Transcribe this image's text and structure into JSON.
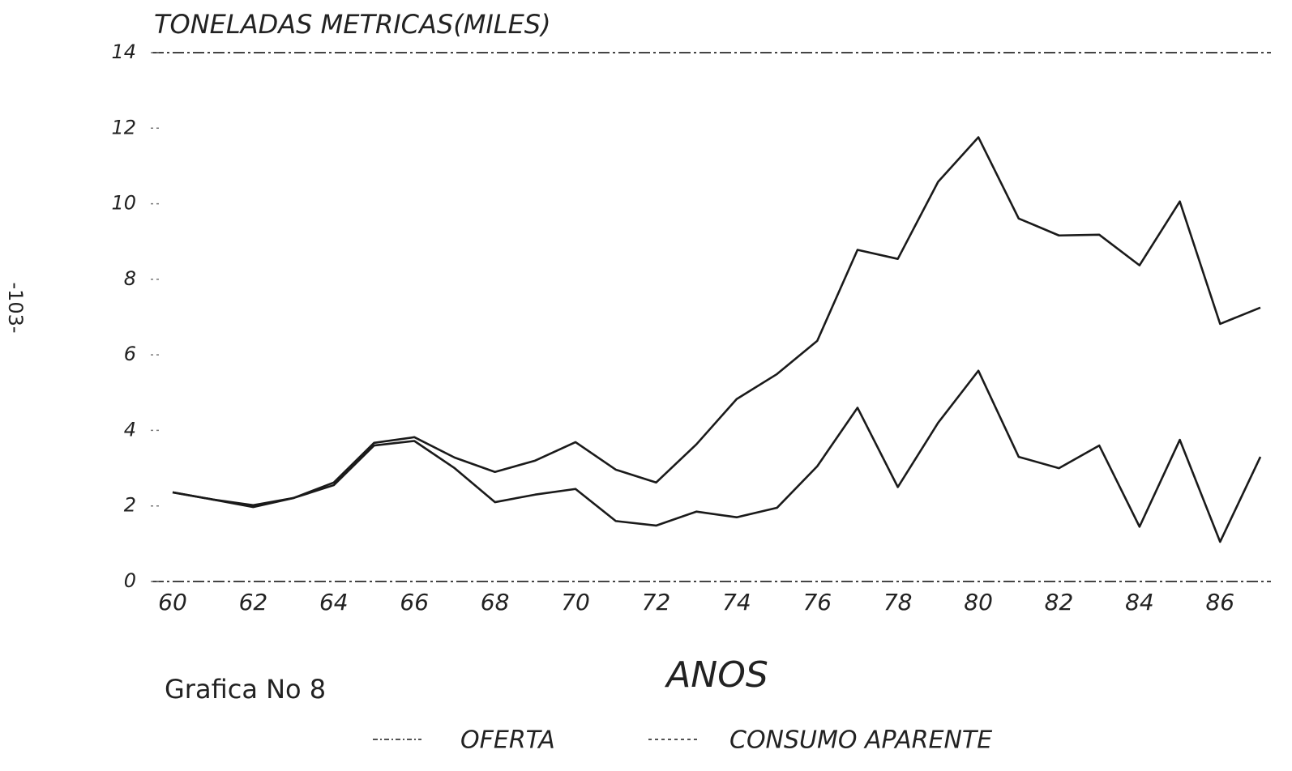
{
  "chart_data": {
    "type": "line",
    "title": "TONELADAS METRICAS(MILES)",
    "x_label": "ANOS",
    "caption": "Grafica No 8",
    "page_number": "-103-",
    "x": [
      60,
      61,
      62,
      63,
      64,
      65,
      66,
      67,
      68,
      69,
      70,
      71,
      72,
      73,
      74,
      75,
      76,
      77,
      78,
      79,
      80,
      81,
      82,
      83,
      84,
      85,
      86,
      87
    ],
    "series": [
      {
        "name": "OFERTA",
        "color": "#1a1a1a",
        "values": [
          2.36,
          2.17,
          2.02,
          2.21,
          2.62,
          3.67,
          3.82,
          3.28,
          2.9,
          3.2,
          3.69,
          2.96,
          2.62,
          3.63,
          4.83,
          5.49,
          6.37,
          8.78,
          8.54,
          10.58,
          11.76,
          9.61,
          9.16,
          9.18,
          8.37,
          10.06,
          6.82,
          7.25
        ]
      },
      {
        "name": "CONSUMO APARENTE",
        "color": "#1a1a1a",
        "values": [
          2.36,
          2.17,
          1.97,
          2.21,
          2.55,
          3.6,
          3.72,
          3.0,
          2.1,
          2.3,
          2.45,
          1.6,
          1.48,
          1.85,
          1.7,
          1.95,
          3.05,
          4.6,
          2.5,
          4.2,
          5.58,
          3.3,
          3.0,
          3.6,
          1.45,
          3.75,
          1.05,
          3.3
        ]
      }
    ],
    "xlim": [
      60,
      87
    ],
    "xticks": [
      60,
      62,
      64,
      66,
      68,
      70,
      72,
      74,
      76,
      78,
      80,
      82,
      84,
      86
    ],
    "ylim": [
      0,
      14
    ],
    "yticks": [
      0,
      2,
      4,
      6,
      8,
      10,
      12,
      14
    ]
  }
}
